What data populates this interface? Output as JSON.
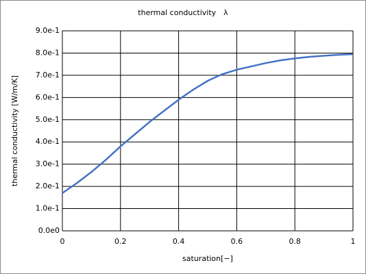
{
  "chart_data": {
    "type": "line",
    "title": "thermal conductivity　λ",
    "x_label": "saturation[−]",
    "y_label": "thermal conductivity [W/m/K]",
    "x": [
      0,
      0.05,
      0.1,
      0.15,
      0.2,
      0.25,
      0.3,
      0.35,
      0.4,
      0.45,
      0.5,
      0.55,
      0.6,
      0.65,
      0.7,
      0.75,
      0.8,
      0.85,
      0.9,
      0.95,
      1
    ],
    "series": [
      {
        "color": "#4472c4",
        "values": [
          0.17,
          0.215,
          0.265,
          0.32,
          0.38,
          0.435,
          0.49,
          0.54,
          0.59,
          0.635,
          0.675,
          0.705,
          0.725,
          0.74,
          0.755,
          0.767,
          0.776,
          0.783,
          0.788,
          0.792,
          0.795
        ]
      }
    ],
    "xlim": [
      0,
      1
    ],
    "xticks": [
      0,
      0.2,
      0.4,
      0.6,
      0.8,
      1
    ],
    "ylim": [
      0,
      0.9
    ],
    "yticks": [
      {
        "value": 0,
        "label": "0.0e0"
      },
      {
        "value": 0.1,
        "label": "1.0e-1"
      },
      {
        "value": 0.2,
        "label": "2.0e-1"
      },
      {
        "value": 0.3,
        "label": "3.0e-1"
      },
      {
        "value": 0.4,
        "label": "4.0e-1"
      },
      {
        "value": 0.5,
        "label": "5.0e-1"
      },
      {
        "value": 0.6,
        "label": "6.0e-1"
      },
      {
        "value": 0.7,
        "label": "7.0e-1"
      },
      {
        "value": 0.8,
        "label": "8.0e-1"
      },
      {
        "value": 0.9,
        "label": "9.0e-1"
      }
    ],
    "grid": true
  }
}
